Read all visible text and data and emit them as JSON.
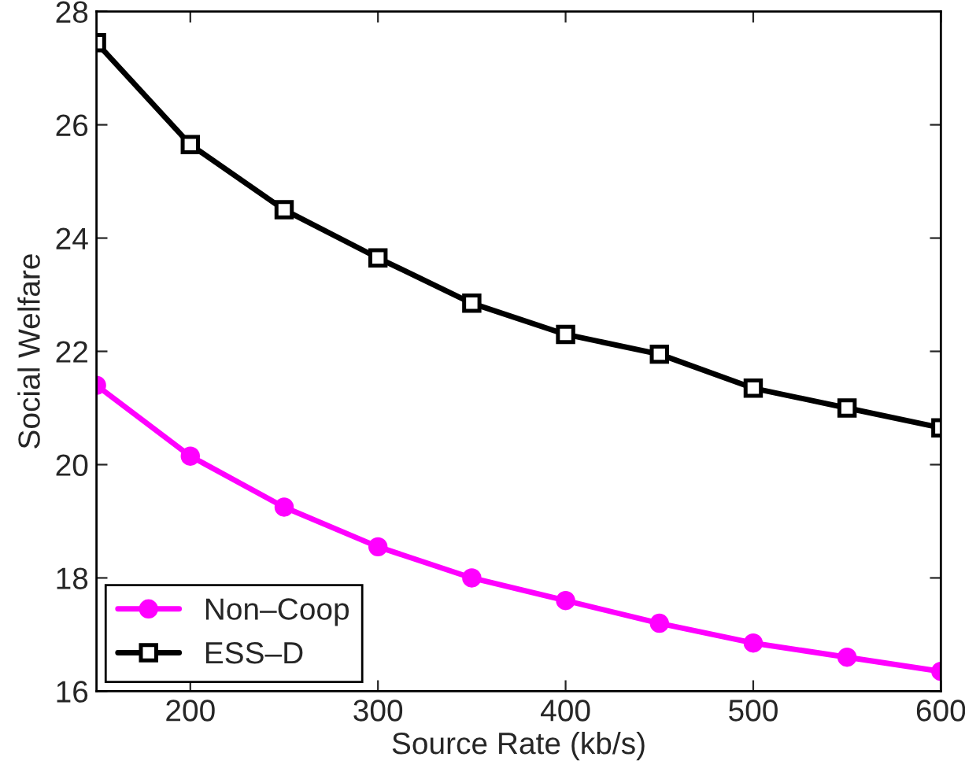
{
  "chart_data": {
    "type": "line",
    "xlabel": "Source Rate (kb/s)",
    "ylabel": "Social Welfare",
    "x": [
      150,
      200,
      250,
      300,
      350,
      400,
      450,
      500,
      550,
      600
    ],
    "series": [
      {
        "name": "Non–Coop",
        "color": "#ff00ff",
        "marker": "circle",
        "values": [
          21.4,
          20.15,
          19.25,
          18.55,
          18.0,
          17.6,
          17.2,
          16.85,
          16.6,
          16.35
        ]
      },
      {
        "name": "ESS–D",
        "color": "#000000",
        "marker": "square",
        "values": [
          27.45,
          25.65,
          24.5,
          23.65,
          22.85,
          22.3,
          21.95,
          21.35,
          21.0,
          20.65
        ]
      }
    ],
    "xlim": [
      150,
      600
    ],
    "xticks": [
      200,
      300,
      400,
      500,
      600
    ],
    "ylim": [
      16,
      28
    ],
    "yticks": [
      16,
      18,
      20,
      22,
      24,
      26,
      28
    ],
    "legend": "bottom left",
    "line_style": "solid"
  }
}
